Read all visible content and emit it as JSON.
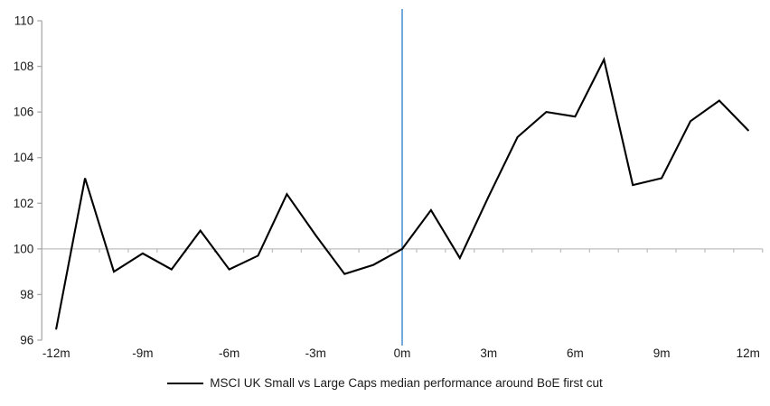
{
  "chart_data": {
    "type": "line",
    "title": "",
    "xlabel": "",
    "ylabel": "",
    "x": [
      -12,
      -11,
      -10,
      -9,
      -8,
      -7,
      -6,
      -5,
      -4,
      -3,
      -2,
      -1,
      0,
      1,
      2,
      3,
      4,
      5,
      6,
      7,
      8,
      9,
      10,
      11,
      12
    ],
    "series": [
      {
        "name": "MSCI UK Small vs Large Caps median performance around BoE first cut",
        "values": [
          96.5,
          103.1,
          99.0,
          99.8,
          99.1,
          100.8,
          99.1,
          99.7,
          102.4,
          100.6,
          98.9,
          99.3,
          100.0,
          101.7,
          99.6,
          102.3,
          104.9,
          106.0,
          105.8,
          108.3,
          102.8,
          103.1,
          105.6,
          106.5,
          105.2
        ],
        "color": "#000000"
      }
    ],
    "y_ticks": [
      96,
      98,
      100,
      102,
      104,
      106,
      108,
      110
    ],
    "ylim": [
      96,
      110
    ],
    "xlim": [
      -12.5,
      12.5
    ],
    "x_tick_labels": [
      {
        "x": -12,
        "label": "-12m"
      },
      {
        "x": -9,
        "label": "-9m"
      },
      {
        "x": -6,
        "label": "-6m"
      },
      {
        "x": -3,
        "label": "-3m"
      },
      {
        "x": 0,
        "label": "0m"
      },
      {
        "x": 3,
        "label": "3m"
      },
      {
        "x": 6,
        "label": "6m"
      },
      {
        "x": 9,
        "label": "9m"
      },
      {
        "x": 12,
        "label": "12m"
      }
    ],
    "baseline": {
      "value": 100
    },
    "event_line": {
      "x": 0
    },
    "legend_position": "bottom",
    "grid": "off"
  },
  "legend": {
    "label": "MSCI UK Small vs Large Caps median performance around BoE first cut"
  },
  "colors": {
    "series_line": "#000000",
    "event_line": "#5B9BD5",
    "axis_line": "#ABABAB",
    "baseline_line": "#BFBFBF"
  }
}
